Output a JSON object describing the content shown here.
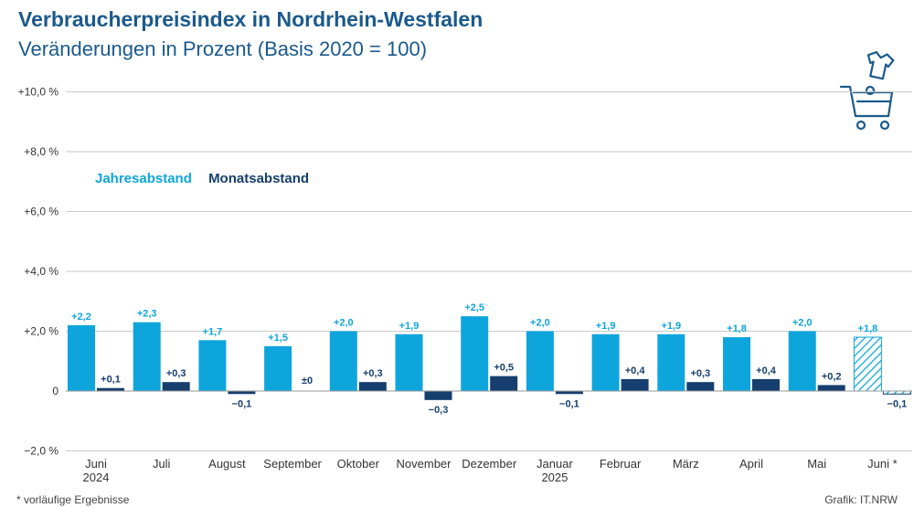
{
  "colors": {
    "year": "#0ea5dd",
    "month": "#163e6e",
    "title": "#1b5a8c"
  },
  "icon": "shopping-cart-with-shirt-icon",
  "footnote": "*  vorläufige Ergebnisse",
  "credit": "Grafik: IT.NRW",
  "chart_data": {
    "type": "bar",
    "title": "Verbraucherpreisindex in Nordrhein-Westfalen",
    "subtitle": "Veränderungen in Prozent (Basis 2020 = 100)",
    "ylim": [
      -2,
      10
    ],
    "yticks": [
      -2,
      0,
      2,
      4,
      6,
      8,
      10
    ],
    "ytick_labels": [
      "−2,0 %",
      "0",
      "+2,0 %",
      "+4,0 %",
      "+6,0 %",
      "+8,0 %",
      "+10,0 %"
    ],
    "grid": true,
    "legend": "top-left",
    "categories": [
      "Juni 2024",
      "Juli",
      "August",
      "September",
      "Oktober",
      "November",
      "Dezember",
      "Januar 2025",
      "Februar",
      "März",
      "April",
      "Mai",
      "Juni *"
    ],
    "category_lines": [
      [
        "Juni",
        "2024"
      ],
      [
        "Juli"
      ],
      [
        "August"
      ],
      [
        "September"
      ],
      [
        "Oktober"
      ],
      [
        "November"
      ],
      [
        "Dezember"
      ],
      [
        "Januar",
        "2025"
      ],
      [
        "Februar"
      ],
      [
        "März"
      ],
      [
        "April"
      ],
      [
        "Mai"
      ],
      [
        "Juni *"
      ]
    ],
    "series": [
      {
        "name": "Jahresabstand",
        "values": [
          2.2,
          2.3,
          1.7,
          1.5,
          2.0,
          1.9,
          2.5,
          2.0,
          1.9,
          1.9,
          1.8,
          2.0,
          1.8
        ],
        "labels": [
          "+2,2",
          "+2,3",
          "+1,7",
          "+1,5",
          "+2,0",
          "+1,9",
          "+2,5",
          "+2,0",
          "+1,9",
          "+1,9",
          "+1,8",
          "+2,0",
          "+1,8"
        ]
      },
      {
        "name": "Monatsabstand",
        "values": [
          0.1,
          0.3,
          -0.1,
          0,
          0.3,
          -0.3,
          0.5,
          -0.1,
          0.4,
          0.3,
          0.4,
          0.2,
          -0.1
        ],
        "labels": [
          "+0,1",
          "+0,3",
          "−0,1",
          "±0",
          "+0,3",
          "−0,3",
          "+0,5",
          "−0,1",
          "+0,4",
          "+0,3",
          "+0,4",
          "+0,2",
          "−0,1"
        ]
      }
    ],
    "preliminary": [
      false,
      false,
      false,
      false,
      false,
      false,
      false,
      false,
      false,
      false,
      false,
      false,
      true
    ]
  }
}
